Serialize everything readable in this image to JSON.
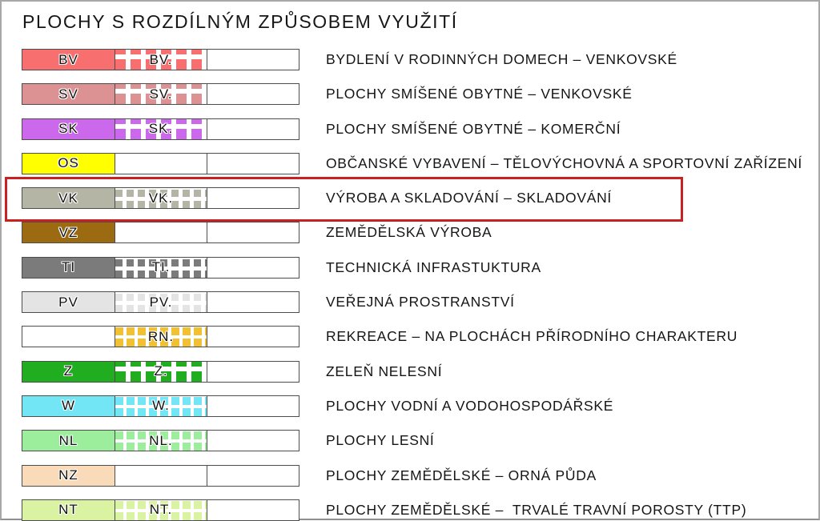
{
  "title": "PLOCHY S ROZDÍLNÝM ZPŮSOBEM VYUŽITÍ",
  "legend": {
    "highlight_color": "#c92121",
    "rows": [
      {
        "code": "BV",
        "pattern_code": "BV.",
        "color": "#f76f6f",
        "pattern": "plaid",
        "highlighted": false,
        "description": "BYDLENÍ V RODINNÝCH DOMECH – VENKOVSKÉ"
      },
      {
        "code": "SV",
        "pattern_code": "SV.",
        "color": "#dc9292",
        "pattern": "plaid",
        "highlighted": false,
        "description": "PLOCHY SMÍŠENÉ OBYTNÉ – VENKOVSKÉ"
      },
      {
        "code": "SK",
        "pattern_code": "SK.",
        "color": "#cb68ec",
        "pattern": "plaid",
        "highlighted": false,
        "description": "PLOCHY SMÍŠENÉ OBYTNÉ – KOMERČNÍ"
      },
      {
        "code": "OS",
        "pattern_code": "",
        "color": "#ffff00",
        "pattern": "none",
        "highlighted": false,
        "description": "OBČANSKÉ VYBAVENÍ – TĚLOVÝCHOVNÁ A SPORTOVNÍ ZAŘÍZENÍ"
      },
      {
        "code": "VK",
        "pattern_code": "VK.",
        "color": "#b5b5a6",
        "pattern": "dots",
        "highlighted": true,
        "description": "VÝROBA A SKLADOVÁNÍ – SKLADOVÁNÍ"
      },
      {
        "code": "VZ",
        "pattern_code": "",
        "color": "#9c6a10",
        "pattern": "none",
        "highlighted": false,
        "description": "ZEMĚDĚLSKÁ VÝROBA"
      },
      {
        "code": "TI",
        "pattern_code": "TI.",
        "color": "#7b7b7b",
        "pattern": "dots",
        "highlighted": false,
        "description": "TECHNICKÁ INFRASTUKTURA"
      },
      {
        "code": "PV",
        "pattern_code": "PV.",
        "color": "#e4e4e4",
        "pattern": "dots",
        "highlighted": false,
        "description": "VEŘEJNÁ PROSTRANSTVÍ"
      },
      {
        "code": "",
        "pattern_code": "RN.",
        "color": "#f1c133",
        "pattern": "grid",
        "highlighted": false,
        "description": "REKREACE – NA PLOCHÁCH PŘÍRODNÍHO CHARAKTERU"
      },
      {
        "code": "Z",
        "pattern_code": "Z.",
        "color": "#20ae20",
        "pattern": "plaid",
        "highlighted": false,
        "description": "ZELEŇ NELESNÍ"
      },
      {
        "code": "W",
        "pattern_code": "W.",
        "color": "#73e6f6",
        "pattern": "grid",
        "highlighted": false,
        "description": "PLOCHY VODNÍ A VODOHOSPODÁŘSKÉ"
      },
      {
        "code": "NL",
        "pattern_code": "NL.",
        "color": "#9cee9c",
        "pattern": "grid",
        "highlighted": false,
        "description": "PLOCHY LESNÍ"
      },
      {
        "code": "NZ",
        "pattern_code": "",
        "color": "#f9dbb9",
        "pattern": "none",
        "highlighted": false,
        "description": "PLOCHY ZEMĚDĚLSKÉ – ORNÁ PŮDA"
      },
      {
        "code": "NT",
        "pattern_code": "NT.",
        "color": "#daf3a2",
        "pattern": "grid",
        "highlighted": false,
        "description": "PLOCHY ZEMĚDĚLSKÉ –  TRVALÉ TRAVNÍ POROSTY (TTP)"
      }
    ]
  }
}
